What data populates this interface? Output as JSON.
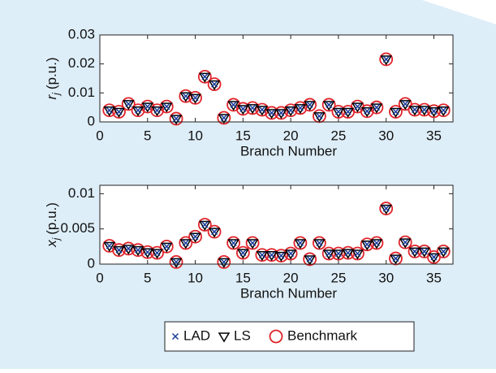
{
  "chart_data": [
    {
      "type": "scatter",
      "ylabel": {
        "symbol": "r",
        "subscript": "j",
        "unit": "(p.u.)"
      },
      "xlabel": "Branch Number",
      "x": [
        1,
        2,
        3,
        4,
        5,
        6,
        7,
        8,
        9,
        10,
        11,
        12,
        13,
        14,
        15,
        16,
        17,
        18,
        19,
        20,
        21,
        22,
        23,
        24,
        25,
        26,
        27,
        28,
        29,
        30,
        31,
        32,
        33,
        34,
        35,
        36
      ],
      "xlim": [
        0,
        37
      ],
      "xticks": [
        0,
        5,
        10,
        15,
        20,
        25,
        30,
        35
      ],
      "ylim": [
        0,
        0.03
      ],
      "yticks": [
        0,
        0.01,
        0.02,
        0.03
      ],
      "series": [
        {
          "name": "Benchmark",
          "marker": "o",
          "color": "#e0242b",
          "values": [
            0.004,
            0.0035,
            0.0062,
            0.004,
            0.0053,
            0.004,
            0.0053,
            0.0011,
            0.0089,
            0.0083,
            0.0156,
            0.013,
            0.0014,
            0.0059,
            0.0045,
            0.0048,
            0.0042,
            0.0031,
            0.0031,
            0.004,
            0.0048,
            0.0059,
            0.002,
            0.0059,
            0.0035,
            0.0035,
            0.0053,
            0.0037,
            0.005,
            0.0216,
            0.0035,
            0.0062,
            0.0042,
            0.0042,
            0.0037,
            0.004
          ]
        },
        {
          "name": "LS",
          "marker": "v",
          "color": "#000000",
          "values": [
            0.004,
            0.0035,
            0.0062,
            0.004,
            0.0053,
            0.004,
            0.0053,
            0.0011,
            0.0089,
            0.0083,
            0.0156,
            0.013,
            0.0014,
            0.0059,
            0.0045,
            0.0048,
            0.0042,
            0.0031,
            0.0031,
            0.004,
            0.0048,
            0.0059,
            0.002,
            0.0059,
            0.0035,
            0.0035,
            0.0053,
            0.0037,
            0.005,
            0.0216,
            0.0035,
            0.0062,
            0.0042,
            0.0042,
            0.0037,
            0.004
          ]
        },
        {
          "name": "LAD",
          "marker": "x",
          "color": "#1a3d9e",
          "values": [
            0.004,
            0.0035,
            0.0062,
            0.004,
            0.0053,
            0.004,
            0.0053,
            0.0011,
            0.0089,
            0.0083,
            0.0156,
            0.013,
            0.0014,
            0.0059,
            0.0045,
            0.0048,
            0.0042,
            0.0031,
            0.0031,
            0.004,
            0.0048,
            0.0059,
            0.002,
            0.0059,
            0.0035,
            0.0035,
            0.0053,
            0.0037,
            0.005,
            0.0216,
            0.0035,
            0.0062,
            0.0042,
            0.0042,
            0.0037,
            0.004
          ]
        }
      ]
    },
    {
      "type": "scatter",
      "ylabel": {
        "symbol": "x",
        "subscript": "j",
        "unit": "(p.u.)"
      },
      "xlabel": "Branch Number",
      "x": [
        1,
        2,
        3,
        4,
        5,
        6,
        7,
        8,
        9,
        10,
        11,
        12,
        13,
        14,
        15,
        16,
        17,
        18,
        19,
        20,
        21,
        22,
        23,
        24,
        25,
        26,
        27,
        28,
        29,
        30,
        31,
        32,
        33,
        34,
        35,
        36
      ],
      "xlim": [
        0,
        37
      ],
      "xticks": [
        0,
        5,
        10,
        15,
        20,
        25,
        30,
        35
      ],
      "ylim": [
        0,
        0.0112
      ],
      "yticks": [
        0,
        0.005,
        0.01
      ],
      "series": [
        {
          "marker": "o",
          "color": "#e0242b",
          "values": [
            0.0026,
            0.002,
            0.0022,
            0.002,
            0.0017,
            0.0016,
            0.0025,
            0.0003,
            0.003,
            0.0039,
            0.0056,
            0.0046,
            0.0003,
            0.003,
            0.0016,
            0.003,
            0.0013,
            0.0013,
            0.0012,
            0.0015,
            0.003,
            0.0007,
            0.003,
            0.0015,
            0.0015,
            0.0016,
            0.0015,
            0.0028,
            0.003,
            0.0079,
            0.0008,
            0.0031,
            0.0018,
            0.0018,
            0.001,
            0.0018
          ]
        },
        {
          "marker": "v",
          "color": "#000000",
          "values": [
            0.0026,
            0.002,
            0.0022,
            0.002,
            0.0017,
            0.0016,
            0.0025,
            0.0003,
            0.003,
            0.0039,
            0.0056,
            0.0046,
            0.0003,
            0.003,
            0.0016,
            0.003,
            0.0013,
            0.0013,
            0.0012,
            0.0015,
            0.003,
            0.0007,
            0.003,
            0.0015,
            0.0015,
            0.0016,
            0.0015,
            0.0028,
            0.003,
            0.0079,
            0.0008,
            0.0031,
            0.0018,
            0.0018,
            0.001,
            0.0018
          ]
        },
        {
          "marker": "x",
          "color": "#1a3d9e",
          "values": [
            0.0026,
            0.002,
            0.0022,
            0.002,
            0.0017,
            0.0016,
            0.0025,
            0.0003,
            0.003,
            0.0039,
            0.0056,
            0.0046,
            0.0003,
            0.003,
            0.0016,
            0.003,
            0.0013,
            0.0013,
            0.0012,
            0.0015,
            0.003,
            0.0007,
            0.003,
            0.0015,
            0.0015,
            0.0016,
            0.0015,
            0.0028,
            0.003,
            0.0079,
            0.0008,
            0.0031,
            0.0018,
            0.0018,
            0.001,
            0.0018
          ]
        }
      ]
    }
  ]
}
